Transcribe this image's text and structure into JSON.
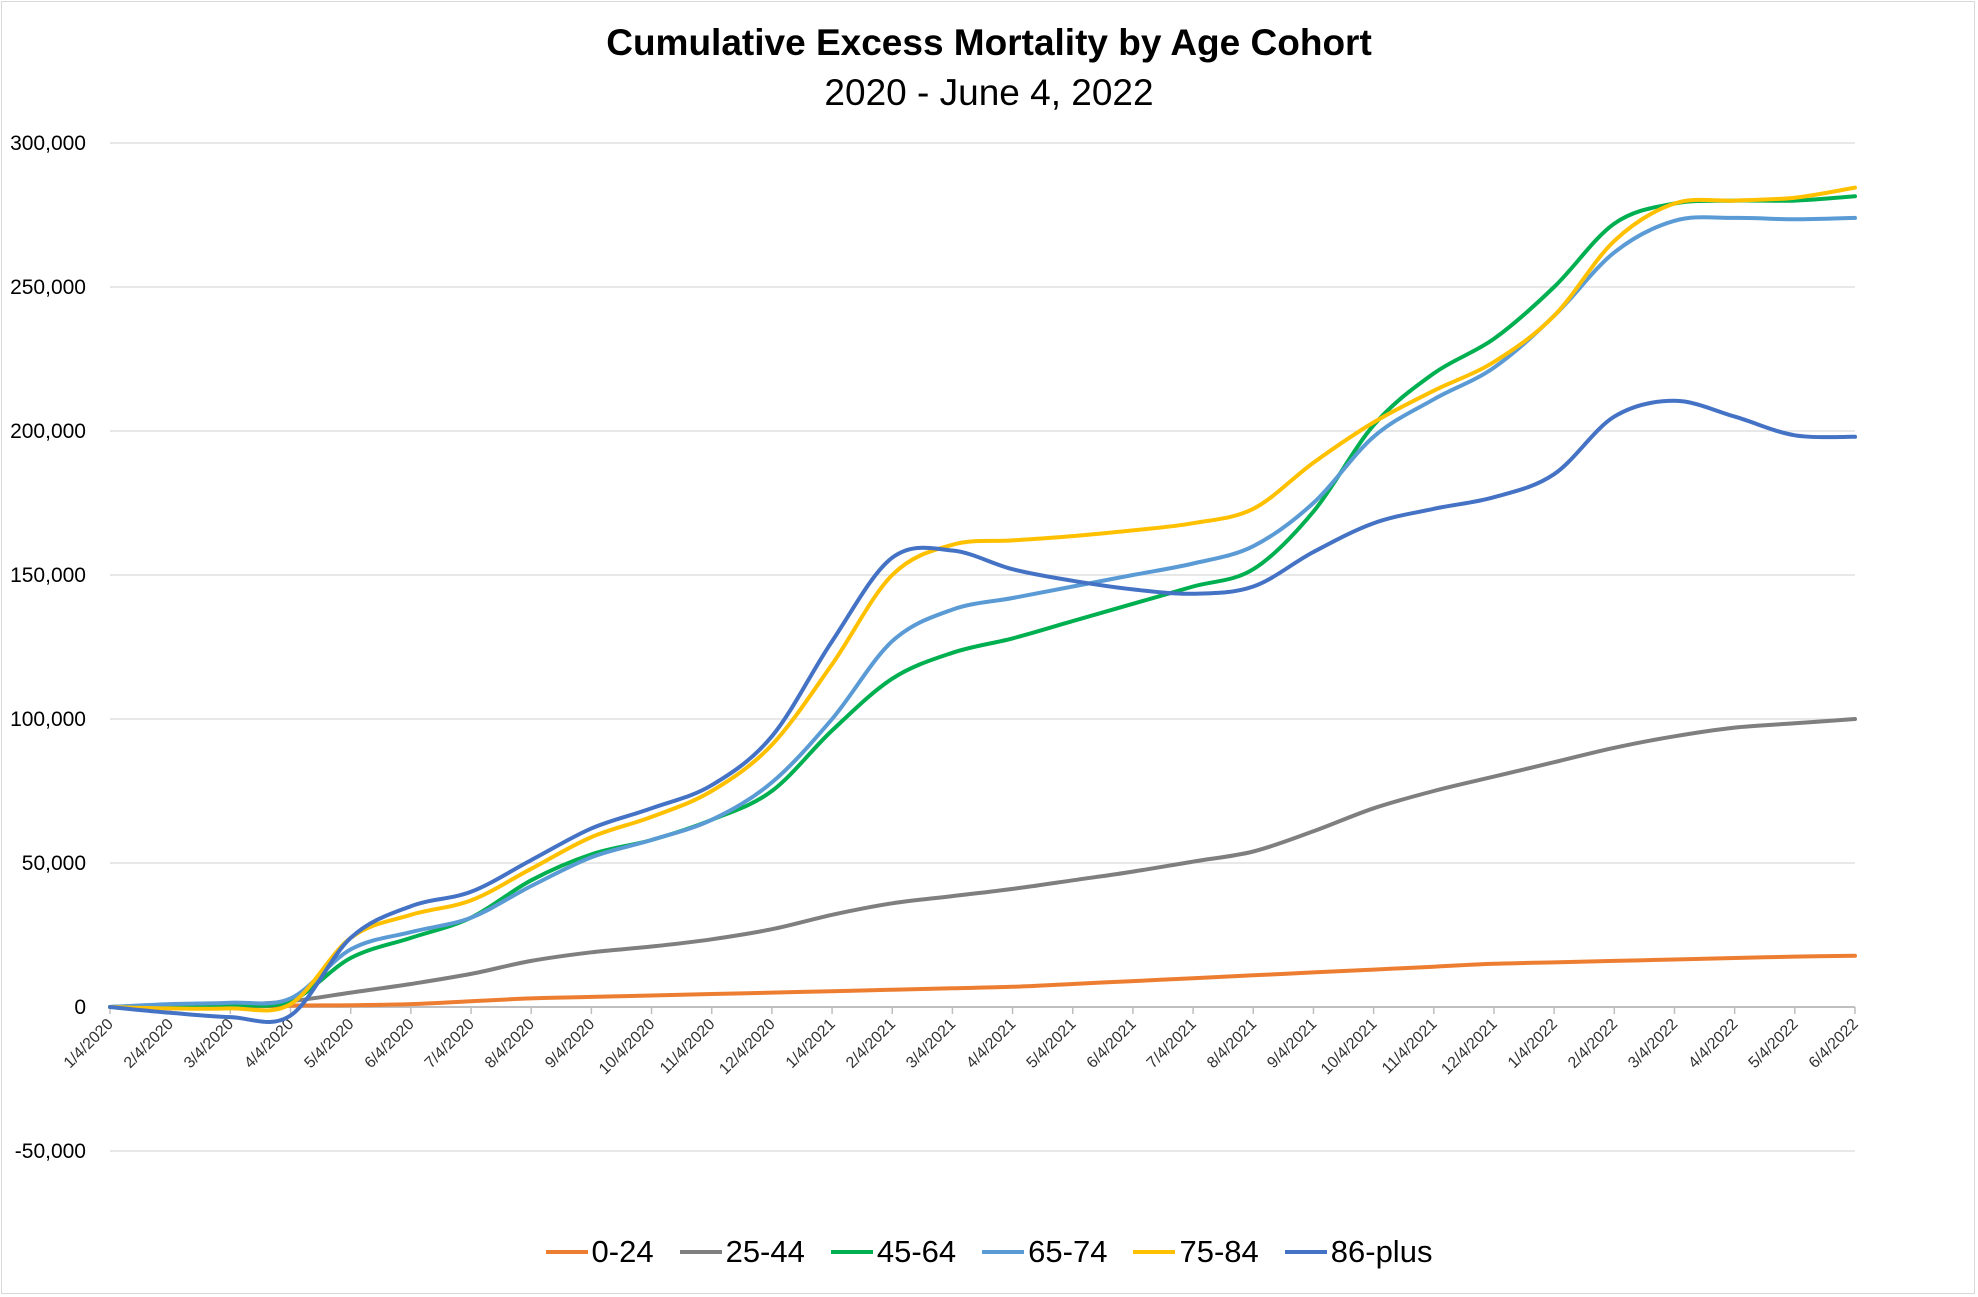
{
  "chart_data": {
    "type": "line",
    "title": "Cumulative Excess Mortality by Age Cohort",
    "subtitle": "2020 - June 4, 2022",
    "xlabel": "",
    "ylabel": "",
    "ylim": [
      -50000,
      300000
    ],
    "yticks": [
      -50000,
      0,
      50000,
      100000,
      150000,
      200000,
      250000,
      300000
    ],
    "ytick_labels": [
      "-50,000",
      "0",
      "50,000",
      "100,000",
      "150,000",
      "200,000",
      "250,000",
      "300,000"
    ],
    "x": [
      "1/4/2020",
      "2/4/2020",
      "3/4/2020",
      "4/4/2020",
      "5/4/2020",
      "6/4/2020",
      "7/4/2020",
      "8/4/2020",
      "9/4/2020",
      "10/4/2020",
      "11/4/2020",
      "12/4/2020",
      "1/4/2021",
      "2/4/2021",
      "3/4/2021",
      "4/4/2021",
      "5/4/2021",
      "6/4/2021",
      "7/4/2021",
      "8/4/2021",
      "9/4/2021",
      "10/4/2021",
      "11/4/2021",
      "12/4/2021",
      "1/4/2022",
      "2/4/2022",
      "3/4/2022",
      "4/4/2022",
      "5/4/2022",
      "6/4/2022"
    ],
    "grid": true,
    "legend_position": "bottom",
    "series": [
      {
        "name": "0-24",
        "color": "#ED7D31",
        "values": [
          0,
          0,
          0,
          500,
          600,
          1000,
          2000,
          3000,
          3500,
          4000,
          4500,
          5000,
          5500,
          6000,
          6500,
          7000,
          8000,
          9000,
          10000,
          11000,
          12000,
          13000,
          14000,
          15000,
          15500,
          16000,
          16500,
          17000,
          17500,
          17800
        ]
      },
      {
        "name": "25-44",
        "color": "#7F7F7F",
        "values": [
          0,
          500,
          700,
          2000,
          5000,
          8000,
          11500,
          16000,
          19000,
          21000,
          23500,
          27000,
          32000,
          36000,
          38500,
          41000,
          44000,
          47000,
          50500,
          54000,
          61000,
          69000,
          75000,
          80000,
          85000,
          90000,
          94000,
          97000,
          98500,
          100000
        ]
      },
      {
        "name": "45-64",
        "color": "#00B050",
        "values": [
          0,
          500,
          700,
          2000,
          17000,
          24000,
          31000,
          44000,
          53000,
          58000,
          65000,
          75000,
          96000,
          114000,
          123000,
          128000,
          134000,
          140000,
          146000,
          152000,
          172000,
          202000,
          220000,
          232000,
          250000,
          272000,
          279000,
          280000,
          280000,
          281500
        ]
      },
      {
        "name": "65-74",
        "color": "#5B9BD5",
        "values": [
          0,
          1000,
          1500,
          3000,
          20000,
          26000,
          31000,
          42000,
          52000,
          58000,
          65000,
          78000,
          100000,
          127000,
          138000,
          142000,
          146000,
          150000,
          154000,
          160000,
          175000,
          198000,
          211000,
          222000,
          240000,
          262000,
          273000,
          274000,
          273500,
          274000
        ]
      },
      {
        "name": "75-84",
        "color": "#FFC000",
        "values": [
          0,
          -500,
          -500,
          1000,
          24000,
          32000,
          37000,
          48000,
          59000,
          66000,
          75000,
          91000,
          119000,
          150000,
          160500,
          162000,
          163500,
          165500,
          168000,
          173000,
          189000,
          203000,
          214000,
          224000,
          240000,
          266000,
          279000,
          280000,
          281000,
          284500
        ]
      },
      {
        "name": "86-plus",
        "color": "#4472C4",
        "values": [
          0,
          -2000,
          -3500,
          -3000,
          24000,
          35000,
          40000,
          51000,
          62000,
          69000,
          77000,
          94000,
          127000,
          156000,
          158500,
          152000,
          148000,
          145000,
          143500,
          146000,
          158000,
          168000,
          173000,
          177000,
          185000,
          205000,
          210500,
          205000,
          198500,
          198000
        ]
      }
    ]
  }
}
